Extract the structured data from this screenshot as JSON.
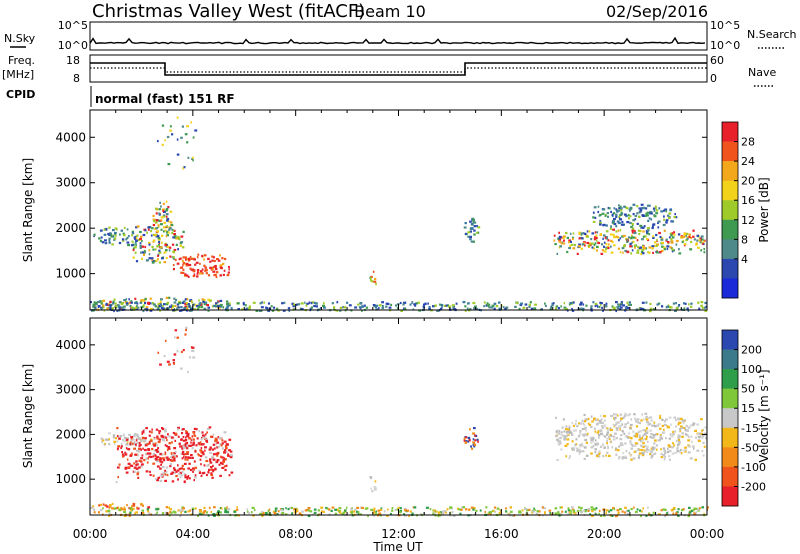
{
  "header": {
    "station": "Christmas Valley West (fitACF)",
    "beam": "Beam 10",
    "date": "02/Sep/2016"
  },
  "status_panels": {
    "nsky_label": "N.Sky",
    "nsearch_label": "N.Search",
    "nsky_ticks": [
      "10^5",
      "10^0"
    ],
    "nsearch_ticks": [
      "10^5",
      "10^0"
    ],
    "freq_label": "Freq.",
    "freq_unit": "[MHz]",
    "freq_ticks": [
      "18",
      "8"
    ],
    "nave_label": "Nave",
    "nave_ticks": [
      "60",
      "0"
    ],
    "cpid_label": "CPID",
    "cpid_value": "normal (fast) 151 RF"
  },
  "chart_data": [
    {
      "type": "heatmap",
      "name": "power",
      "ylabel": "Slant Range [km]",
      "ylim": [
        200,
        4600
      ],
      "yticks": [
        1000,
        2000,
        3000,
        4000
      ],
      "xlim": [
        0,
        24
      ],
      "colorbar": {
        "label": "Power [dB]",
        "ticks": [
          "28",
          "24",
          "20",
          "16",
          "12",
          "8",
          "4"
        ],
        "colors": [
          "#e8202a",
          "#f0541c",
          "#f2a81a",
          "#f2d21a",
          "#9ecb2a",
          "#3e9a50",
          "#4f8a8a",
          "#2a48b0",
          "#1a2ad8"
        ]
      },
      "echo_regions": [
        {
          "t0": 0.0,
          "t1": 5.5,
          "r0": 200,
          "r1": 500,
          "level": "mixed"
        },
        {
          "t0": 0.0,
          "t1": 24.0,
          "r0": 200,
          "r1": 400,
          "level": "low"
        },
        {
          "t0": 0.1,
          "t1": 1.8,
          "r0": 1650,
          "r1": 2050,
          "level": "low"
        },
        {
          "t0": 1.6,
          "t1": 3.6,
          "r0": 1250,
          "r1": 2100,
          "level": "mixed"
        },
        {
          "t0": 2.4,
          "t1": 3.2,
          "r0": 1800,
          "r1": 2650,
          "level": "mixed"
        },
        {
          "t0": 3.2,
          "t1": 5.5,
          "r0": 950,
          "r1": 1450,
          "level": "high"
        },
        {
          "t0": 2.6,
          "t1": 4.2,
          "r0": 3300,
          "r1": 4500,
          "level": "sparse"
        },
        {
          "t0": 10.8,
          "t1": 11.1,
          "r0": 750,
          "r1": 1100,
          "level": "mid"
        },
        {
          "t0": 14.5,
          "t1": 15.1,
          "r0": 1700,
          "r1": 2250,
          "level": "low"
        },
        {
          "t0": 18.0,
          "t1": 24.0,
          "r0": 1450,
          "r1": 2000,
          "level": "mixed"
        },
        {
          "t0": 19.5,
          "t1": 22.8,
          "r0": 2000,
          "r1": 2550,
          "level": "low"
        }
      ]
    },
    {
      "type": "heatmap",
      "name": "velocity",
      "ylabel": "Slant Range [km]",
      "ylim": [
        200,
        4600
      ],
      "yticks": [
        1000,
        2000,
        3000,
        4000
      ],
      "xlim": [
        0,
        24
      ],
      "colorbar": {
        "label": "Velocity [m s⁻¹]",
        "ticks": [
          "200",
          "100",
          "50",
          "15",
          "-15",
          "-50",
          "-100",
          "-200"
        ],
        "colors": [
          "#2a48b0",
          "#3a7a8a",
          "#2e9e4a",
          "#7ec83a",
          "#c8c8c8",
          "#f2b81a",
          "#f28a1a",
          "#f0541c",
          "#e8202a"
        ]
      },
      "echo_regions": [
        {
          "t0": 0.0,
          "t1": 2.8,
          "r0": 350,
          "r1": 480,
          "level": "orange"
        },
        {
          "t0": 0.0,
          "t1": 24.0,
          "r0": 200,
          "r1": 400,
          "level": "green-orange"
        },
        {
          "t0": 0.3,
          "t1": 2.5,
          "r0": 1750,
          "r1": 2050,
          "level": "grey"
        },
        {
          "t0": 1.0,
          "t1": 5.5,
          "r0": 950,
          "r1": 2200,
          "level": "red"
        },
        {
          "t0": 2.6,
          "t1": 4.2,
          "r0": 3300,
          "r1": 4500,
          "level": "red-sparse"
        },
        {
          "t0": 10.8,
          "t1": 11.1,
          "r0": 750,
          "r1": 1100,
          "level": "grey"
        },
        {
          "t0": 14.5,
          "t1": 15.1,
          "r0": 1700,
          "r1": 2250,
          "level": "blue-red"
        },
        {
          "t0": 18.0,
          "t1": 24.0,
          "r0": 1450,
          "r1": 2500,
          "level": "grey"
        }
      ]
    }
  ],
  "x_axis": {
    "label": "Time UT",
    "ticks": [
      "00:00",
      "04:00",
      "08:00",
      "12:00",
      "16:00",
      "20:00",
      "00:00"
    ]
  }
}
